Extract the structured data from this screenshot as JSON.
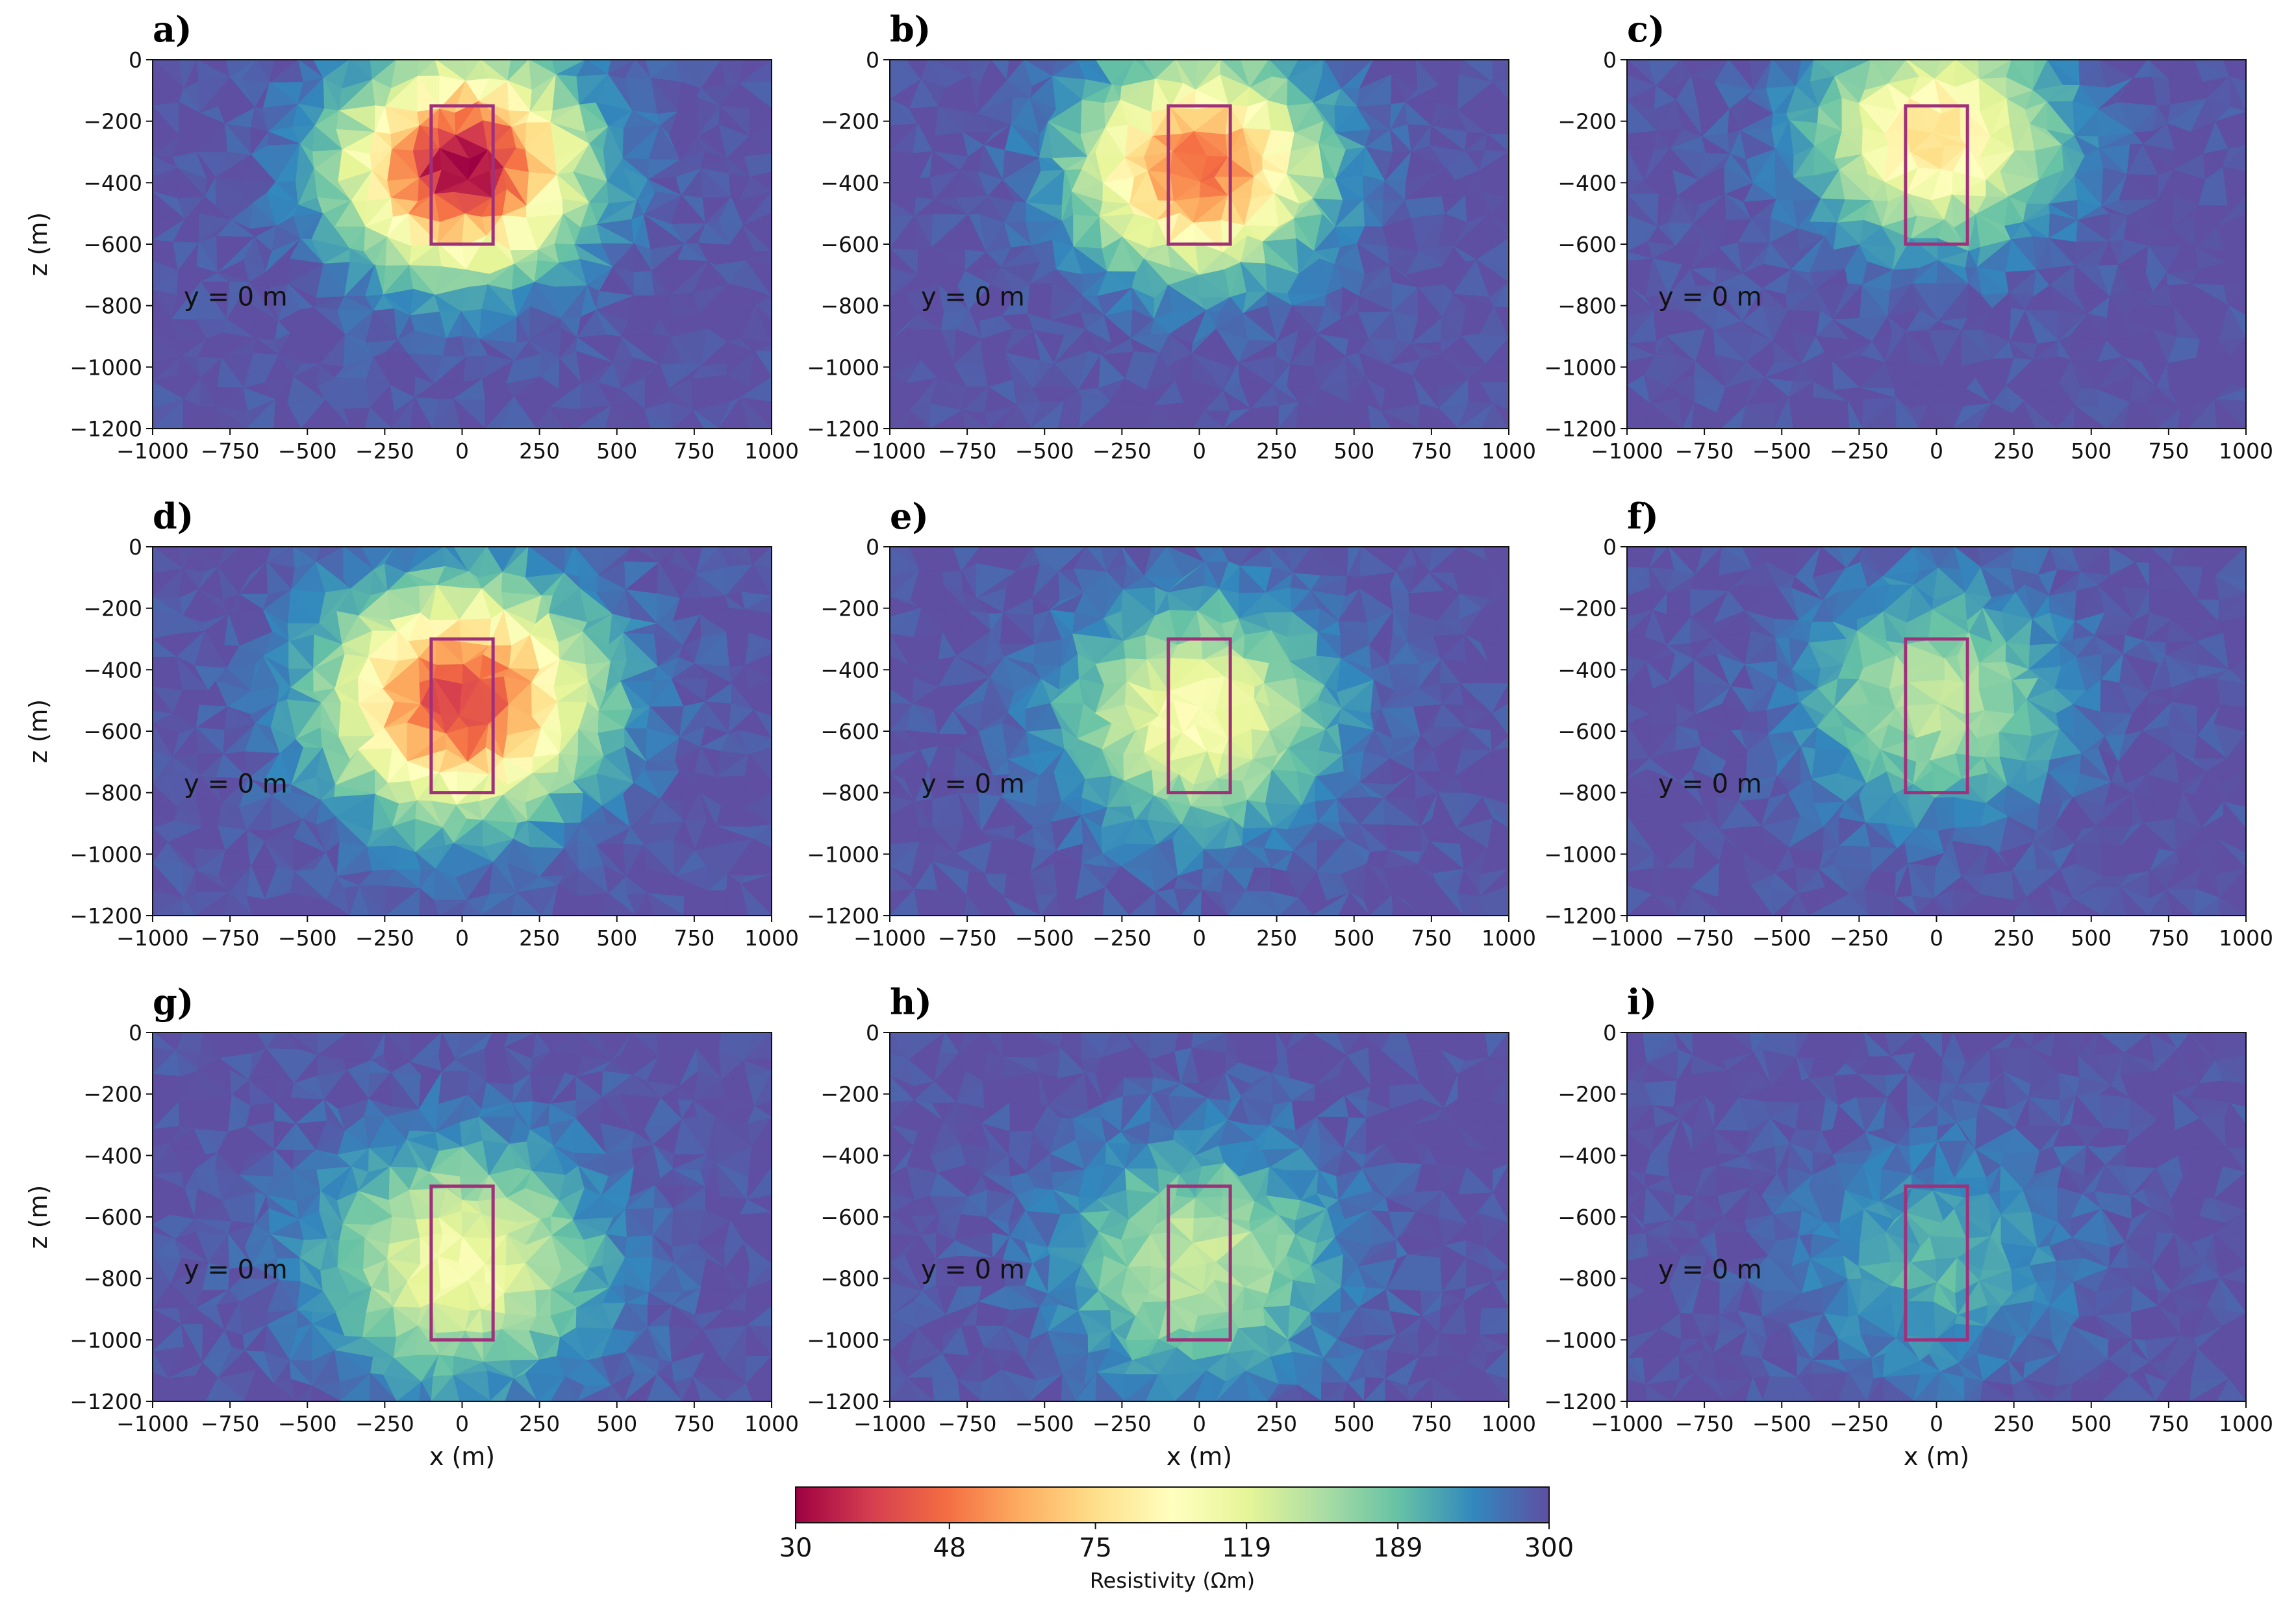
{
  "chart_data": {
    "type": "heatmap",
    "description_units": {
      "x": "m",
      "z": "m",
      "resistivity": "Ωm"
    },
    "colormap": [
      "#9e0142",
      "#d53e4f",
      "#f46d43",
      "#fdae61",
      "#fee08b",
      "#ffffbf",
      "#e6f598",
      "#abdda4",
      "#66c2a5",
      "#3288bd",
      "#5e4fa2"
    ],
    "box_color": "#a0307a",
    "xlim": [
      -1000,
      1000
    ],
    "zlim": [
      -1200,
      0
    ],
    "x_ticks": [
      "−1000",
      "−750",
      "−500",
      "−250",
      "0",
      "250",
      "500",
      "750",
      "1000"
    ],
    "x_tick_values": [
      -1000,
      -750,
      -500,
      -250,
      0,
      250,
      500,
      750,
      1000
    ],
    "z_ticks": [
      "0",
      "−200",
      "−400",
      "−600",
      "−800",
      "−1000",
      "−1200"
    ],
    "z_tick_values": [
      0,
      -200,
      -400,
      -600,
      -800,
      -1000,
      -1200
    ],
    "xlabel": "x (m)",
    "zlabel": "z (m)",
    "panels": [
      {
        "label": "a)",
        "annotation": "y = 0 m",
        "box": {
          "x0": -100,
          "x1": 100,
          "z0": -150,
          "z1": -600
        },
        "min_resistivity": 30,
        "anomaly_center": {
          "x": 0,
          "z": -350
        }
      },
      {
        "label": "b)",
        "annotation": "y = 0 m",
        "box": {
          "x0": -100,
          "x1": 100,
          "z0": -150,
          "z1": -600
        },
        "min_resistivity": 45,
        "anomaly_center": {
          "x": 0,
          "z": -350
        }
      },
      {
        "label": "c)",
        "annotation": "y = 0 m",
        "box": {
          "x0": -100,
          "x1": 100,
          "z0": -150,
          "z1": -600
        },
        "min_resistivity": 75,
        "anomaly_center": {
          "x": 0,
          "z": -250
        }
      },
      {
        "label": "d)",
        "annotation": "y = 0 m",
        "box": {
          "x0": -100,
          "x1": 100,
          "z0": -300,
          "z1": -800
        },
        "min_resistivity": 38,
        "anomaly_center": {
          "x": 0,
          "z": -500
        }
      },
      {
        "label": "e)",
        "annotation": "y = 0 m",
        "box": {
          "x0": -100,
          "x1": 100,
          "z0": -300,
          "z1": -800
        },
        "min_resistivity": 100,
        "anomaly_center": {
          "x": 0,
          "z": -550
        }
      },
      {
        "label": "f)",
        "annotation": "y = 0 m",
        "box": {
          "x0": -100,
          "x1": 100,
          "z0": -300,
          "z1": -800
        },
        "min_resistivity": 140,
        "anomaly_center": {
          "x": 0,
          "z": -500
        }
      },
      {
        "label": "g)",
        "annotation": "y = 0 m",
        "box": {
          "x0": -100,
          "x1": 100,
          "z0": -500,
          "z1": -1000
        },
        "min_resistivity": 105,
        "anomaly_center": {
          "x": 0,
          "z": -750
        }
      },
      {
        "label": "h)",
        "annotation": "y = 0 m",
        "box": {
          "x0": -100,
          "x1": 100,
          "z0": -500,
          "z1": -1000
        },
        "min_resistivity": 135,
        "anomaly_center": {
          "x": 0,
          "z": -750
        }
      },
      {
        "label": "i)",
        "annotation": "y = 0 m",
        "box": {
          "x0": -100,
          "x1": 100,
          "z0": -500,
          "z1": -1000
        },
        "min_resistivity": 200,
        "anomaly_center": {
          "x": 0,
          "z": -750
        }
      }
    ],
    "colorbar": {
      "label": "Resistivity (Ωm)",
      "tick_labels": [
        "30",
        "48",
        "75",
        "119",
        "189",
        "300"
      ],
      "tick_values": [
        30,
        48,
        75,
        119,
        189,
        300
      ],
      "range": [
        30,
        300
      ],
      "scale": "log"
    }
  }
}
